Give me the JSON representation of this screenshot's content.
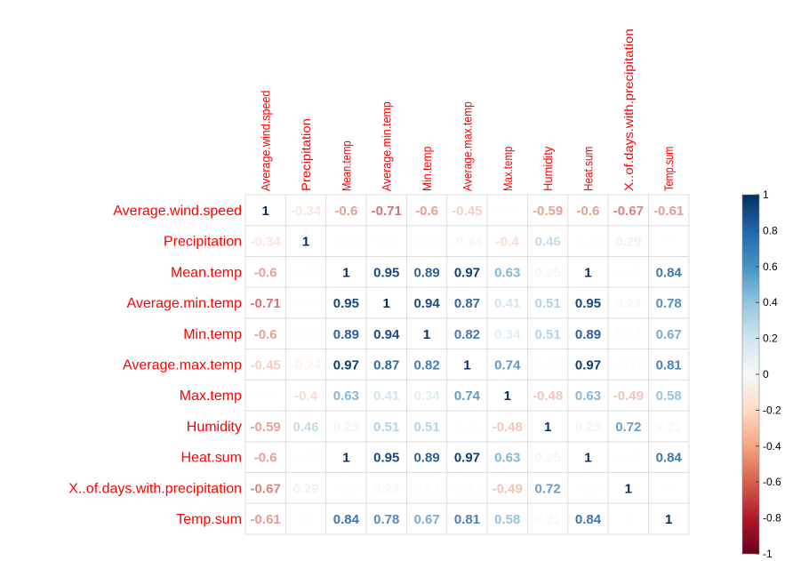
{
  "chart_data": {
    "type": "heatmap",
    "variables": [
      "Average.wind.speed",
      "Precipitation",
      "Mean.temp",
      "Average.min.temp",
      "Min.temp",
      "Average.max.temp",
      "Max.temp",
      "Humidity",
      "Heat.sum",
      "X..of.days.with.precipitation",
      "Temp.sum"
    ],
    "matrix": [
      [
        1,
        -0.34,
        -0.6,
        -0.71,
        -0.6,
        -0.45,
        0.05,
        -0.59,
        -0.6,
        -0.67,
        -0.61
      ],
      [
        -0.34,
        1,
        -0.12,
        0.02,
        -0.09,
        -0.24,
        -0.4,
        0.46,
        -0.12,
        0.29,
        0
      ],
      [
        -0.6,
        -0.12,
        1,
        0.95,
        0.89,
        0.97,
        0.63,
        0.25,
        1,
        0.03,
        0.84
      ],
      [
        -0.71,
        0.02,
        0.95,
        1,
        0.94,
        0.87,
        0.41,
        0.51,
        0.95,
        0.23,
        0.78
      ],
      [
        -0.6,
        -0.09,
        0.89,
        0.94,
        1,
        0.82,
        0.34,
        0.51,
        0.89,
        0.17,
        0.67
      ],
      [
        -0.45,
        -0.24,
        0.97,
        0.87,
        0.82,
        1,
        0.74,
        0.05,
        0.97,
        -0.17,
        0.81
      ],
      [
        0.05,
        -0.4,
        0.63,
        0.41,
        0.34,
        0.74,
        1,
        -0.48,
        0.63,
        -0.49,
        0.58
      ],
      [
        -0.59,
        0.46,
        0.25,
        0.51,
        0.51,
        0.05,
        -0.48,
        1,
        0.25,
        0.72,
        0.21
      ],
      [
        -0.6,
        -0.12,
        1,
        0.95,
        0.89,
        0.97,
        0.63,
        0.25,
        1,
        0.03,
        0.84
      ],
      [
        -0.67,
        0.29,
        0.03,
        0.23,
        0.17,
        -0.17,
        -0.49,
        0.72,
        0.03,
        1,
        0
      ],
      [
        -0.61,
        0,
        0.84,
        0.78,
        0.67,
        0.81,
        0.58,
        0.21,
        0.84,
        0,
        1
      ]
    ],
    "colorbar_ticks": [
      "1",
      "0.8",
      "0.6",
      "0.4",
      "0.2",
      "0",
      "-0.2",
      "-0.4",
      "-0.6",
      "-0.8",
      "-1"
    ],
    "value_range": [
      -1,
      1
    ],
    "colors": {
      "label": "#ff0000",
      "grid": "#dddddd"
    }
  }
}
